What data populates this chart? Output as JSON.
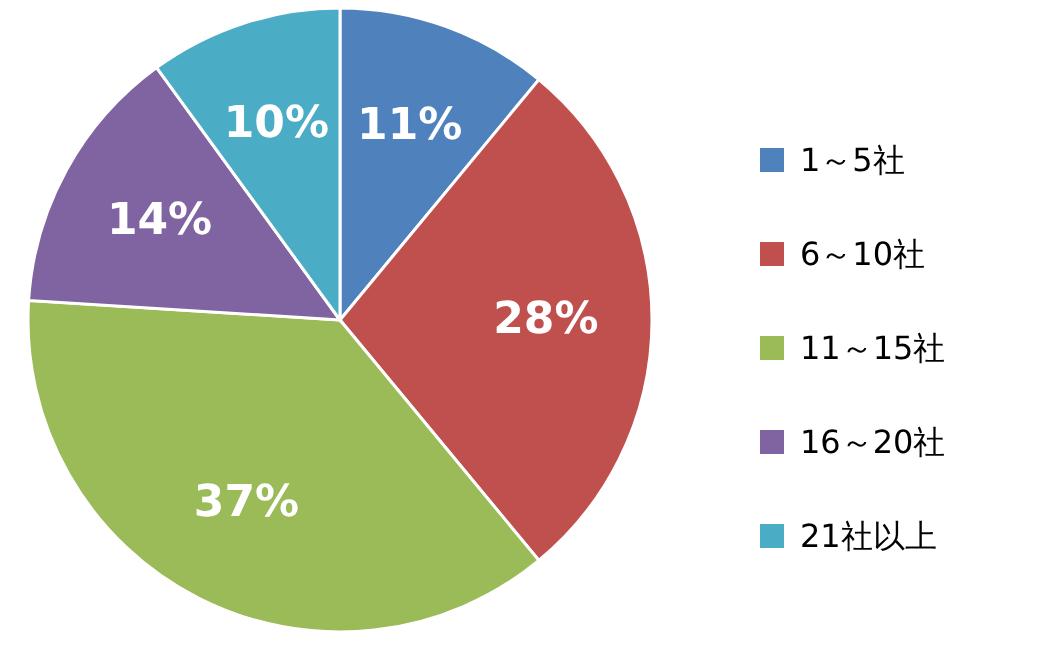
{
  "chart_data": {
    "type": "pie",
    "categories": [
      "1～5社",
      "6～10社",
      "11～15社",
      "16～20社",
      "21社以上"
    ],
    "values": [
      11,
      28,
      37,
      14,
      10
    ],
    "value_labels": [
      "11%",
      "28%",
      "37%",
      "14%",
      "10%"
    ],
    "colors": [
      "#4f81bd",
      "#c0504d",
      "#9bbb59",
      "#8064a2",
      "#4bacc6"
    ],
    "legend": "right"
  }
}
